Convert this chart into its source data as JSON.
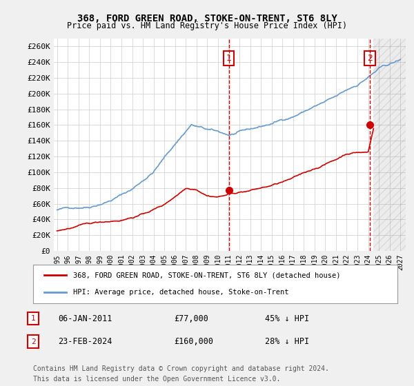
{
  "title": "368, FORD GREEN ROAD, STOKE-ON-TRENT, ST6 8LY",
  "subtitle": "Price paid vs. HM Land Registry's House Price Index (HPI)",
  "ylabel_ticks": [
    "£0",
    "£20K",
    "£40K",
    "£60K",
    "£80K",
    "£100K",
    "£120K",
    "£140K",
    "£160K",
    "£180K",
    "£200K",
    "£220K",
    "£240K",
    "£260K"
  ],
  "ylim": [
    0,
    270000
  ],
  "ytick_values": [
    0,
    20000,
    40000,
    60000,
    80000,
    100000,
    120000,
    140000,
    160000,
    180000,
    200000,
    220000,
    240000,
    260000
  ],
  "xlim_start": 1995.0,
  "xlim_end": 2027.5,
  "xtick_labels": [
    "1995",
    "1996",
    "1997",
    "1998",
    "1999",
    "2000",
    "2001",
    "2002",
    "2003",
    "2004",
    "2005",
    "2006",
    "2007",
    "2008",
    "2009",
    "2010",
    "2011",
    "2012",
    "2013",
    "2014",
    "2015",
    "2016",
    "2017",
    "2018",
    "2019",
    "2020",
    "2021",
    "2022",
    "2023",
    "2024",
    "2025",
    "2026",
    "2027"
  ],
  "background_color": "#f0f0f0",
  "plot_bg_color": "#ffffff",
  "grid_color": "#cccccc",
  "hpi_color": "#6699cc",
  "price_color": "#cc0000",
  "marker1_year": 2011.02,
  "marker1_price": 77000,
  "marker2_year": 2024.15,
  "marker2_price": 160000,
  "legend_label_red": "368, FORD GREEN ROAD, STOKE-ON-TRENT, ST6 8LY (detached house)",
  "legend_label_blue": "HPI: Average price, detached house, Stoke-on-Trent",
  "table_rows": [
    {
      "num": "1",
      "date": "06-JAN-2011",
      "price": "£77,000",
      "pct": "45% ↓ HPI"
    },
    {
      "num": "2",
      "date": "23-FEB-2024",
      "price": "£160,000",
      "pct": "28% ↓ HPI"
    }
  ],
  "footnote1": "Contains HM Land Registry data © Crown copyright and database right 2024.",
  "footnote2": "This data is licensed under the Open Government Licence v3.0.",
  "hatch_color": "#dddddd"
}
